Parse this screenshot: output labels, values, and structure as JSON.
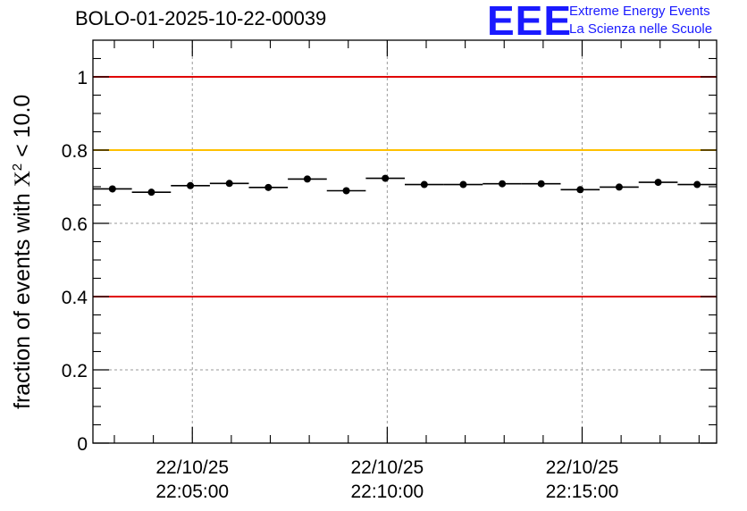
{
  "header": {
    "title": "BOLO-01-2025-10-22-00039",
    "logo_mark": "EEE",
    "logo_line1": "Extreme Energy Events",
    "logo_line2": "La Scienza nelle Scuole",
    "logo_color": "#1a1aff"
  },
  "chart_data": {
    "type": "scatter",
    "title": "BOLO-01-2025-10-22-00039",
    "ylabel_prefix": "fraction of events with ",
    "ylabel_symbol": "X",
    "ylabel_sup": "2",
    "ylabel_suffix": " < 10.0",
    "xlabel": "",
    "ylim": [
      0,
      1.1
    ],
    "xlim_minutes": [
      0,
      16
    ],
    "y_ticks": [
      0,
      0.2,
      0.4,
      0.6,
      0.8,
      1
    ],
    "y_tick_labels": [
      "0",
      "0.2",
      "0.4",
      "0.6",
      "0.8",
      "1"
    ],
    "x_ticks_minutes": [
      2.55,
      7.55,
      12.55
    ],
    "x_tick_labels": [
      {
        "date": "22/10/25",
        "time": "22:05:00"
      },
      {
        "date": "22/10/25",
        "time": "22:10:00"
      },
      {
        "date": "22/10/25",
        "time": "22:15:00"
      }
    ],
    "grid": true,
    "reference_lines": [
      {
        "y": 1.0,
        "color": "#e00000"
      },
      {
        "y": 0.8,
        "color": "#ffc000"
      },
      {
        "y": 0.4,
        "color": "#e00000"
      }
    ],
    "bins": [
      {
        "x_center_minutes": 0.5,
        "half_width_minutes": 0.5,
        "value": 0.694
      },
      {
        "x_center_minutes": 1.5,
        "half_width_minutes": 0.5,
        "value": 0.685
      },
      {
        "x_center_minutes": 2.5,
        "half_width_minutes": 0.5,
        "value": 0.703
      },
      {
        "x_center_minutes": 3.5,
        "half_width_minutes": 0.5,
        "value": 0.709
      },
      {
        "x_center_minutes": 4.5,
        "half_width_minutes": 0.5,
        "value": 0.698
      },
      {
        "x_center_minutes": 5.5,
        "half_width_minutes": 0.5,
        "value": 0.721
      },
      {
        "x_center_minutes": 6.5,
        "half_width_minutes": 0.5,
        "value": 0.689
      },
      {
        "x_center_minutes": 7.5,
        "half_width_minutes": 0.5,
        "value": 0.723
      },
      {
        "x_center_minutes": 8.5,
        "half_width_minutes": 0.5,
        "value": 0.706
      },
      {
        "x_center_minutes": 9.5,
        "half_width_minutes": 0.5,
        "value": 0.706
      },
      {
        "x_center_minutes": 10.5,
        "half_width_minutes": 0.5,
        "value": 0.708
      },
      {
        "x_center_minutes": 11.5,
        "half_width_minutes": 0.5,
        "value": 0.708
      },
      {
        "x_center_minutes": 12.5,
        "half_width_minutes": 0.5,
        "value": 0.692
      },
      {
        "x_center_minutes": 13.5,
        "half_width_minutes": 0.5,
        "value": 0.699
      },
      {
        "x_center_minutes": 14.5,
        "half_width_minutes": 0.5,
        "value": 0.712
      },
      {
        "x_center_minutes": 15.5,
        "half_width_minutes": 0.5,
        "value": 0.706
      }
    ],
    "colors": {
      "marker": "#000000",
      "grid": "#9a9a9a",
      "frame": "#000000"
    }
  }
}
